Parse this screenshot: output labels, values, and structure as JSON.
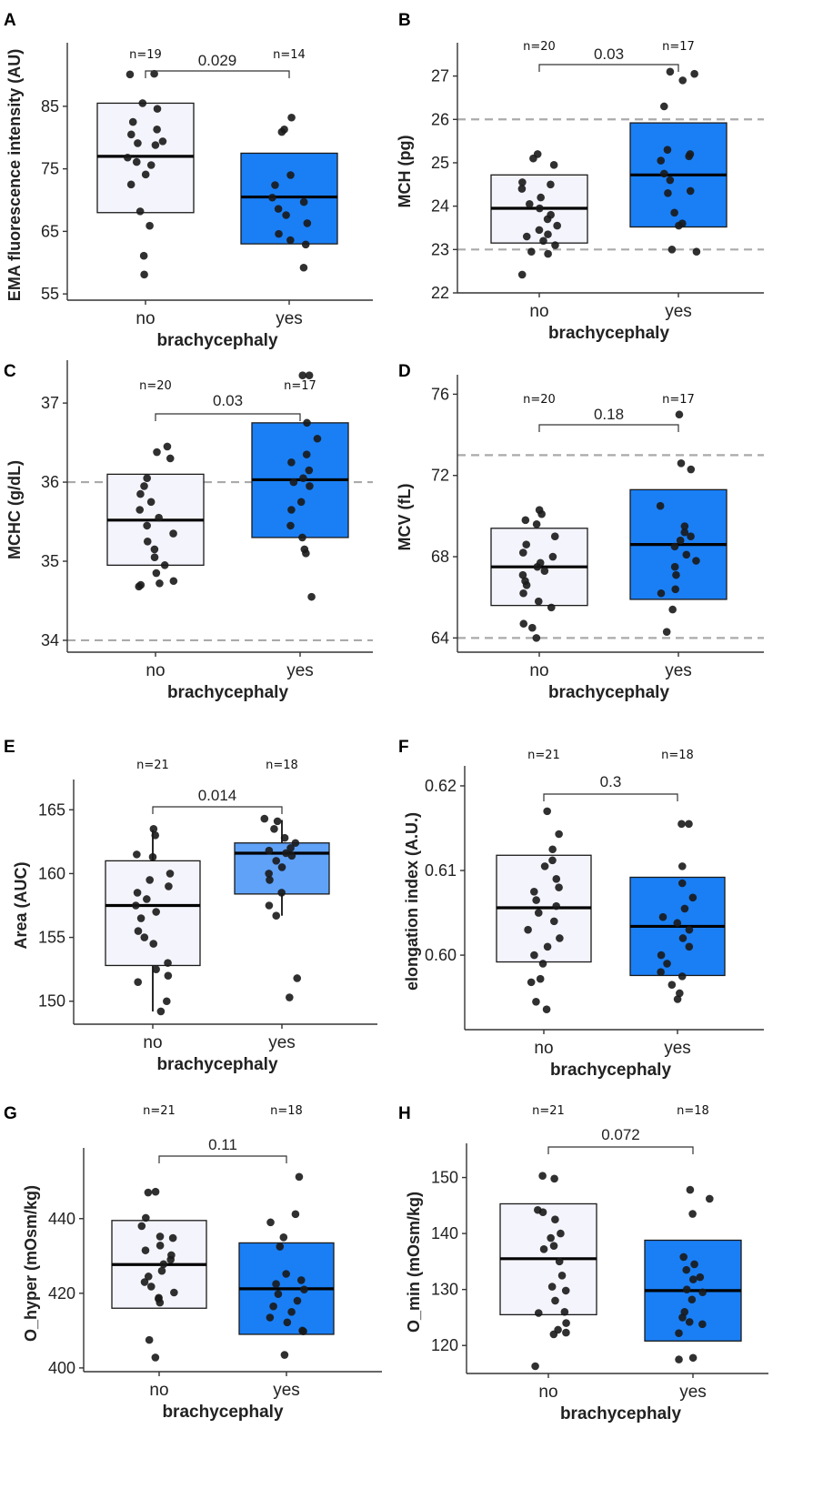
{
  "colors": {
    "box_no": "#f4f4fc",
    "box_yes": "#1a7ff5",
    "box_yes_light": "#5fa2f8",
    "axis": "#333333",
    "refline": "#aaaaaa",
    "point": "#1a1a1a"
  },
  "chart_data": [
    {
      "type": "box",
      "panel": "A",
      "ylabel": "EMA fluorescence intensity  (AU)",
      "xlabel": "brachycephaly",
      "categories": [
        "no",
        "yes"
      ],
      "ylim": [
        54,
        94
      ],
      "yticks": [
        55,
        65,
        75,
        85
      ],
      "refs": [],
      "n_labels": [
        "n=19",
        "n=14"
      ],
      "pvalue": "0.029",
      "boxes": [
        {
          "q1": 68,
          "median": 77,
          "q3": 85.5,
          "whisker_low": null,
          "whisker_high": null
        },
        {
          "q1": 63,
          "median": 70.5,
          "q3": 77.5,
          "whisker_low": null,
          "whisker_high": null
        }
      ],
      "points": [
        [
          90.2,
          90.1,
          85.5,
          84.6,
          82.5,
          81.3,
          80.5,
          79.4,
          79.1,
          78.8,
          76.8,
          76.1,
          75.6,
          74.1,
          72.5,
          68.2,
          65.9,
          61.1,
          58.1
        ],
        [
          83.2,
          81.3,
          80.9,
          74,
          72.4,
          70.4,
          69.7,
          68.6,
          67.6,
          66.3,
          64.6,
          63.6,
          62.9,
          59.2
        ]
      ]
    },
    {
      "type": "box",
      "panel": "B",
      "ylabel": "MCH (pg)",
      "xlabel": "brachycephaly",
      "categories": [
        "no",
        "yes"
      ],
      "ylim": [
        22,
        27.6
      ],
      "yticks": [
        22,
        23,
        24,
        25,
        26,
        27
      ],
      "refs": [
        23,
        26
      ],
      "n_labels": [
        "n=20",
        "n=17"
      ],
      "pvalue": "0.03",
      "boxes": [
        {
          "q1": 23.15,
          "median": 23.95,
          "q3": 24.72,
          "whisker_low": null,
          "whisker_high": null
        },
        {
          "q1": 23.52,
          "median": 24.72,
          "q3": 25.92,
          "whisker_low": null,
          "whisker_high": null
        }
      ],
      "points": [
        [
          25.2,
          25.1,
          24.95,
          24.55,
          24.5,
          24.4,
          24.2,
          24.05,
          23.95,
          23.8,
          23.7,
          23.55,
          23.45,
          23.35,
          23.3,
          23.2,
          23.1,
          22.95,
          22.9,
          22.42
        ],
        [
          27.1,
          27.05,
          26.9,
          26.3,
          25.3,
          25.2,
          25.15,
          25.05,
          24.75,
          24.6,
          24.35,
          24.3,
          23.85,
          23.6,
          23.55,
          23.0,
          22.95
        ]
      ]
    },
    {
      "type": "box",
      "panel": "C",
      "ylabel": "MCHC (g/dL)",
      "xlabel": "brachycephaly",
      "categories": [
        "no",
        "yes"
      ],
      "ylim": [
        33.85,
        37.45
      ],
      "yticks": [
        34,
        35,
        36,
        37
      ],
      "refs": [
        34,
        36
      ],
      "n_labels": [
        "n=20",
        "n=17"
      ],
      "pvalue": "0.03",
      "boxes": [
        {
          "q1": 34.95,
          "median": 35.52,
          "q3": 36.1,
          "whisker_low": null,
          "whisker_high": null
        },
        {
          "q1": 35.3,
          "median": 36.03,
          "q3": 36.75,
          "whisker_low": null,
          "whisker_high": null
        }
      ],
      "points": [
        [
          36.45,
          36.38,
          36.3,
          36.05,
          35.95,
          35.85,
          35.75,
          35.65,
          35.55,
          35.45,
          35.35,
          35.25,
          35.15,
          35.05,
          34.95,
          34.85,
          34.75,
          34.72,
          34.7,
          34.68
        ],
        [
          37.35,
          37.35,
          36.75,
          36.55,
          36.35,
          36.25,
          36.15,
          36.05,
          36.0,
          35.95,
          35.75,
          35.65,
          35.45,
          35.3,
          35.15,
          35.1,
          34.55
        ]
      ]
    },
    {
      "type": "box",
      "panel": "D",
      "ylabel": "MCV (fL)",
      "xlabel": "brachycephaly",
      "categories": [
        "no",
        "yes"
      ],
      "ylim": [
        63.3,
        76.6
      ],
      "yticks": [
        64,
        68,
        72,
        76
      ],
      "refs": [
        64,
        73
      ],
      "n_labels": [
        "n=20",
        "n=17"
      ],
      "pvalue": "0.18",
      "boxes": [
        {
          "q1": 65.6,
          "median": 67.5,
          "q3": 69.4,
          "whisker_low": null,
          "whisker_high": null
        },
        {
          "q1": 65.9,
          "median": 68.6,
          "q3": 71.3,
          "whisker_low": null,
          "whisker_high": null
        }
      ],
      "points": [
        [
          70.3,
          70.1,
          69.8,
          69.6,
          69.0,
          68.6,
          68.2,
          68.0,
          67.7,
          67.5,
          67.3,
          67.1,
          66.8,
          66.6,
          66.2,
          65.8,
          65.5,
          64.7,
          64.5,
          64.0
        ],
        [
          75.0,
          72.6,
          72.3,
          70.5,
          69.5,
          69.2,
          69.0,
          68.8,
          68.5,
          68.1,
          67.8,
          67.5,
          67.1,
          66.4,
          66.2,
          65.4,
          64.3
        ]
      ]
    },
    {
      "type": "box",
      "panel": "E",
      "ylabel": "Area (AUC)",
      "xlabel": "brachycephaly",
      "categories": [
        "no",
        "yes"
      ],
      "ylim": [
        148.2,
        166.8
      ],
      "yticks": [
        150,
        155,
        160,
        165
      ],
      "refs": [],
      "n_labels": [
        "n=21",
        "n=18"
      ],
      "pvalue": "0.014",
      "boxes": [
        {
          "q1": 152.8,
          "median": 157.5,
          "q3": 161.0,
          "whisker_low": 149.2,
          "whisker_high": 163.4
        },
        {
          "q1": 158.4,
          "median": 161.6,
          "q3": 162.4,
          "whisker_low": 156.7,
          "whisker_high": 164.2
        }
      ],
      "points": [
        [
          163.5,
          163.0,
          161.5,
          161.3,
          160.0,
          159.5,
          159.0,
          158.5,
          158.0,
          157.5,
          157.0,
          156.5,
          155.5,
          155.0,
          154.5,
          153.0,
          152.5,
          152.0,
          151.5,
          150.0,
          149.2
        ],
        [
          164.3,
          164.1,
          163.5,
          162.8,
          162.4,
          162.0,
          161.8,
          161.6,
          161.4,
          161.0,
          160.5,
          160.0,
          159.5,
          158.5,
          157.5,
          156.7,
          151.8,
          150.3
        ]
      ]
    },
    {
      "type": "box",
      "panel": "F",
      "ylabel": "elongation index (A.U.)",
      "xlabel": "brachycephaly",
      "categories": [
        "no",
        "yes"
      ],
      "ylim": [
        0.5912,
        0.6215
      ],
      "yticks": [
        0.6,
        0.61,
        0.62
      ],
      "ytick_labels": [
        "0.60",
        "0.61",
        "0.62"
      ],
      "refs": [],
      "n_labels": [
        "n=21",
        "n=18"
      ],
      "pvalue": "0.3",
      "boxes": [
        {
          "q1": 0.5992,
          "median": 0.6056,
          "q3": 0.6118,
          "whisker_low": null,
          "whisker_high": null
        },
        {
          "q1": 0.5976,
          "median": 0.6034,
          "q3": 0.6092,
          "whisker_low": null,
          "whisker_high": null
        }
      ],
      "points": [
        [
          0.617,
          0.6143,
          0.6125,
          0.6112,
          0.6105,
          0.609,
          0.608,
          0.6075,
          0.6065,
          0.6058,
          0.605,
          0.604,
          0.603,
          0.602,
          0.601,
          0.6,
          0.599,
          0.5972,
          0.5968,
          0.5945,
          0.5936
        ],
        [
          0.6155,
          0.6155,
          0.6105,
          0.6085,
          0.6068,
          0.6055,
          0.6045,
          0.6038,
          0.603,
          0.602,
          0.601,
          0.6,
          0.599,
          0.598,
          0.5975,
          0.5965,
          0.5955,
          0.5948
        ]
      ]
    },
    {
      "type": "box",
      "panel": "G",
      "ylabel": "O_hyper (mOsm/kg)",
      "xlabel": "brachycephaly",
      "categories": [
        "no",
        "yes"
      ],
      "ylim": [
        399,
        457
      ],
      "yticks": [
        400,
        420,
        440
      ],
      "refs": [],
      "n_labels": [
        "n=21",
        "n=18"
      ],
      "pvalue": "0.11",
      "boxes": [
        {
          "q1": 416,
          "median": 427.7,
          "q3": 439.5,
          "whisker_low": null,
          "whisker_high": null
        },
        {
          "q1": 409,
          "median": 421.2,
          "q3": 433.5,
          "whisker_low": null,
          "whisker_high": null
        }
      ],
      "points": [
        [
          447.2,
          447.0,
          440.2,
          438.0,
          435.2,
          434.8,
          432.8,
          431.5,
          430.2,
          429.0,
          427.8,
          426.0,
          424.5,
          423.0,
          421.8,
          420.2,
          418.8,
          418.5,
          417.5,
          407.5,
          402.8
        ],
        [
          451.2,
          441.2,
          439.0,
          435.0,
          432.5,
          425.2,
          423.5,
          422.5,
          421.0,
          419.8,
          418.0,
          416.5,
          415.0,
          413.5,
          412.2,
          410.0,
          409.8,
          403.5
        ]
      ]
    },
    {
      "type": "box",
      "panel": "H",
      "ylabel": "O_min (mOsm/kg)",
      "xlabel": "brachycephaly",
      "categories": [
        "no",
        "yes"
      ],
      "ylim": [
        115,
        154.8
      ],
      "yticks": [
        120,
        130,
        140,
        150
      ],
      "refs": [],
      "n_labels": [
        "n=21",
        "n=18"
      ],
      "pvalue": "0.072",
      "boxes": [
        {
          "q1": 125.5,
          "median": 135.5,
          "q3": 145.3,
          "whisker_low": null,
          "whisker_high": null
        },
        {
          "q1": 120.8,
          "median": 129.8,
          "q3": 138.8,
          "whisker_low": null,
          "whisker_high": null
        }
      ],
      "points": [
        [
          150.3,
          149.8,
          144.2,
          143.8,
          142.5,
          140.0,
          139.2,
          137.8,
          137.2,
          135.0,
          132.5,
          130.5,
          129.8,
          128.0,
          126.0,
          125.8,
          124.0,
          122.8,
          122.3,
          122.0,
          116.3
        ],
        [
          147.8,
          146.2,
          143.5,
          135.8,
          134.5,
          133.5,
          132.2,
          131.8,
          130.0,
          129.5,
          128.2,
          126.0,
          125.0,
          124.2,
          123.8,
          122.2,
          117.8,
          117.5
        ]
      ]
    }
  ]
}
